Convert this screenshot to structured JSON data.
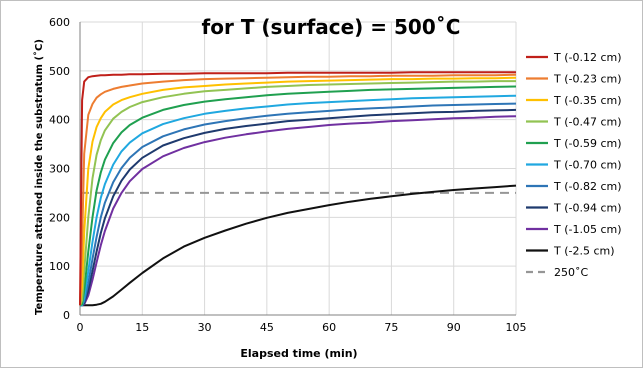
{
  "chart_data": {
    "type": "line",
    "title": "for T (surface) = 500˚C",
    "xlabel": "Elapsed time (min)",
    "ylabel": "Temperature attained inside the substratum (˚C)",
    "xlim": [
      0,
      105
    ],
    "ylim": [
      0,
      600
    ],
    "xticks": [
      0,
      15,
      30,
      45,
      60,
      75,
      90,
      105
    ],
    "yticks": [
      0,
      100,
      200,
      300,
      400,
      500,
      600
    ],
    "grid": true,
    "legend_position": "right",
    "x": [
      0,
      0.5,
      1,
      2,
      3,
      4,
      5,
      6,
      8,
      10,
      12,
      15,
      20,
      25,
      30,
      35,
      40,
      45,
      50,
      55,
      60,
      65,
      70,
      75,
      80,
      85,
      90,
      95,
      100,
      105
    ],
    "series": [
      {
        "name": "T (-0.12 cm)",
        "color": "#c0201a",
        "values": [
          20,
          440,
          478,
          487,
          489,
          490,
          491,
          491,
          492,
          492,
          493,
          493,
          494,
          494,
          495,
          495,
          495,
          495,
          496,
          496,
          496,
          496,
          496,
          496,
          497,
          497,
          497,
          497,
          497,
          497
        ]
      },
      {
        "name": "T (-0.23 cm)",
        "color": "#ed7d31",
        "values": [
          20,
          150,
          330,
          410,
          432,
          445,
          452,
          457,
          463,
          467,
          470,
          474,
          478,
          481,
          483,
          484,
          485,
          486,
          487,
          488,
          488,
          489,
          489,
          490,
          490,
          490,
          491,
          491,
          491,
          492
        ]
      },
      {
        "name": "T (-0.35 cm)",
        "color": "#ffc000",
        "values": [
          20,
          60,
          170,
          300,
          355,
          385,
          403,
          416,
          431,
          440,
          446,
          453,
          461,
          466,
          469,
          472,
          474,
          476,
          478,
          479,
          480,
          481,
          482,
          483,
          483,
          484,
          484,
          485,
          485,
          486
        ]
      },
      {
        "name": "T (-0.47 cm)",
        "color": "#92c353",
        "values": [
          20,
          30,
          90,
          200,
          280,
          328,
          358,
          378,
          402,
          416,
          426,
          436,
          446,
          453,
          458,
          461,
          464,
          467,
          469,
          471,
          472,
          473,
          474,
          475,
          476,
          477,
          478,
          478,
          479,
          479
        ]
      },
      {
        "name": "T (-0.59 cm)",
        "color": "#20a050",
        "values": [
          20,
          22,
          50,
          130,
          200,
          255,
          292,
          318,
          352,
          374,
          389,
          404,
          420,
          430,
          437,
          442,
          446,
          450,
          453,
          455,
          457,
          459,
          461,
          462,
          463,
          464,
          465,
          466,
          467,
          468
        ]
      },
      {
        "name": "T (-0.70 cm)",
        "color": "#20a8e0",
        "values": [
          20,
          20,
          35,
          90,
          150,
          200,
          240,
          268,
          308,
          335,
          353,
          372,
          391,
          403,
          412,
          418,
          423,
          427,
          431,
          434,
          436,
          438,
          440,
          442,
          444,
          445,
          446,
          447,
          448,
          449
        ]
      },
      {
        "name": "T (-0.82 cm)",
        "color": "#2e75b6",
        "values": [
          20,
          20,
          28,
          65,
          115,
          160,
          200,
          230,
          272,
          301,
          322,
          344,
          366,
          380,
          390,
          397,
          403,
          408,
          412,
          415,
          418,
          421,
          423,
          425,
          427,
          429,
          430,
          431,
          432,
          433
        ]
      },
      {
        "name": "T (-0.94 cm)",
        "color": "#1f3a6e",
        "values": [
          20,
          20,
          24,
          50,
          90,
          130,
          168,
          198,
          243,
          275,
          298,
          322,
          347,
          362,
          373,
          381,
          387,
          392,
          397,
          400,
          403,
          406,
          409,
          411,
          413,
          415,
          416,
          418,
          419,
          420
        ]
      },
      {
        "name": "T (-1.05 cm)",
        "color": "#7030a0",
        "values": [
          20,
          20,
          22,
          40,
          72,
          108,
          143,
          172,
          218,
          250,
          274,
          299,
          325,
          342,
          354,
          363,
          370,
          376,
          381,
          385,
          389,
          392,
          394,
          397,
          399,
          401,
          403,
          404,
          406,
          407
        ]
      },
      {
        "name": "T (-2.5 cm)",
        "color": "#111111",
        "values": [
          20,
          20,
          20,
          20,
          20,
          21,
          23,
          27,
          38,
          52,
          66,
          86,
          116,
          140,
          158,
          173,
          187,
          199,
          209,
          217,
          225,
          232,
          238,
          243,
          248,
          252,
          256,
          259,
          262,
          265
        ]
      }
    ],
    "reference_line": {
      "name": "250˚C",
      "value": 250,
      "color": "#969696"
    }
  }
}
